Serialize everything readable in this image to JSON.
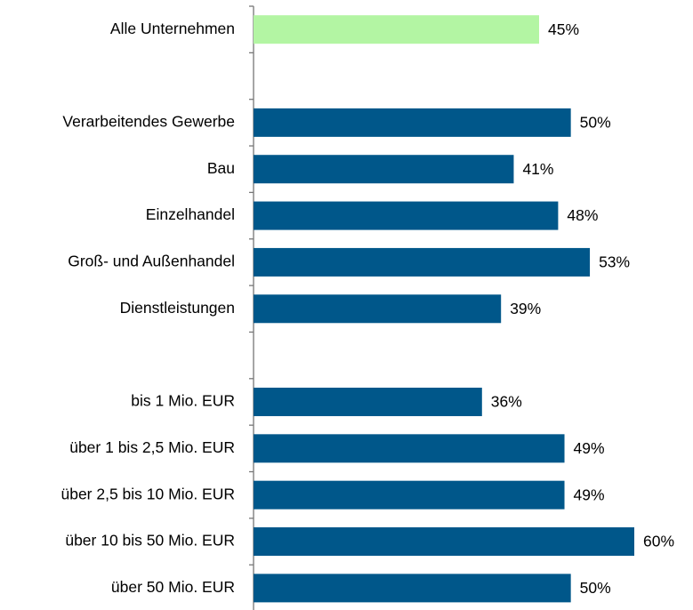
{
  "chart_data": {
    "type": "barh",
    "categories": [
      "Alle Unternehmen",
      null,
      "Verarbeitendes Gewerbe",
      "Bau",
      "Einzelhandel",
      "Groß- und Außenhandel",
      "Dienstleistungen",
      null,
      "bis 1 Mio. EUR",
      "über 1 bis 2,5 Mio. EUR",
      "über 2,5 bis 10 Mio. EUR",
      "über 10 bis 50 Mio. EUR",
      "über 50 Mio. EUR"
    ],
    "values": [
      45,
      null,
      50,
      41,
      48,
      53,
      39,
      null,
      36,
      49,
      49,
      60,
      50
    ],
    "value_labels": [
      "45%",
      null,
      "50%",
      "41%",
      "48%",
      "53%",
      "39%",
      null,
      "36%",
      "49%",
      "49%",
      "60%",
      "50%"
    ],
    "colors": [
      "#b3f5a3",
      null,
      "#00578a",
      "#00578a",
      "#00578a",
      "#00578a",
      "#00578a",
      null,
      "#00578a",
      "#00578a",
      "#00578a",
      "#00578a",
      "#00578a"
    ],
    "xlim": [
      0,
      60
    ]
  }
}
